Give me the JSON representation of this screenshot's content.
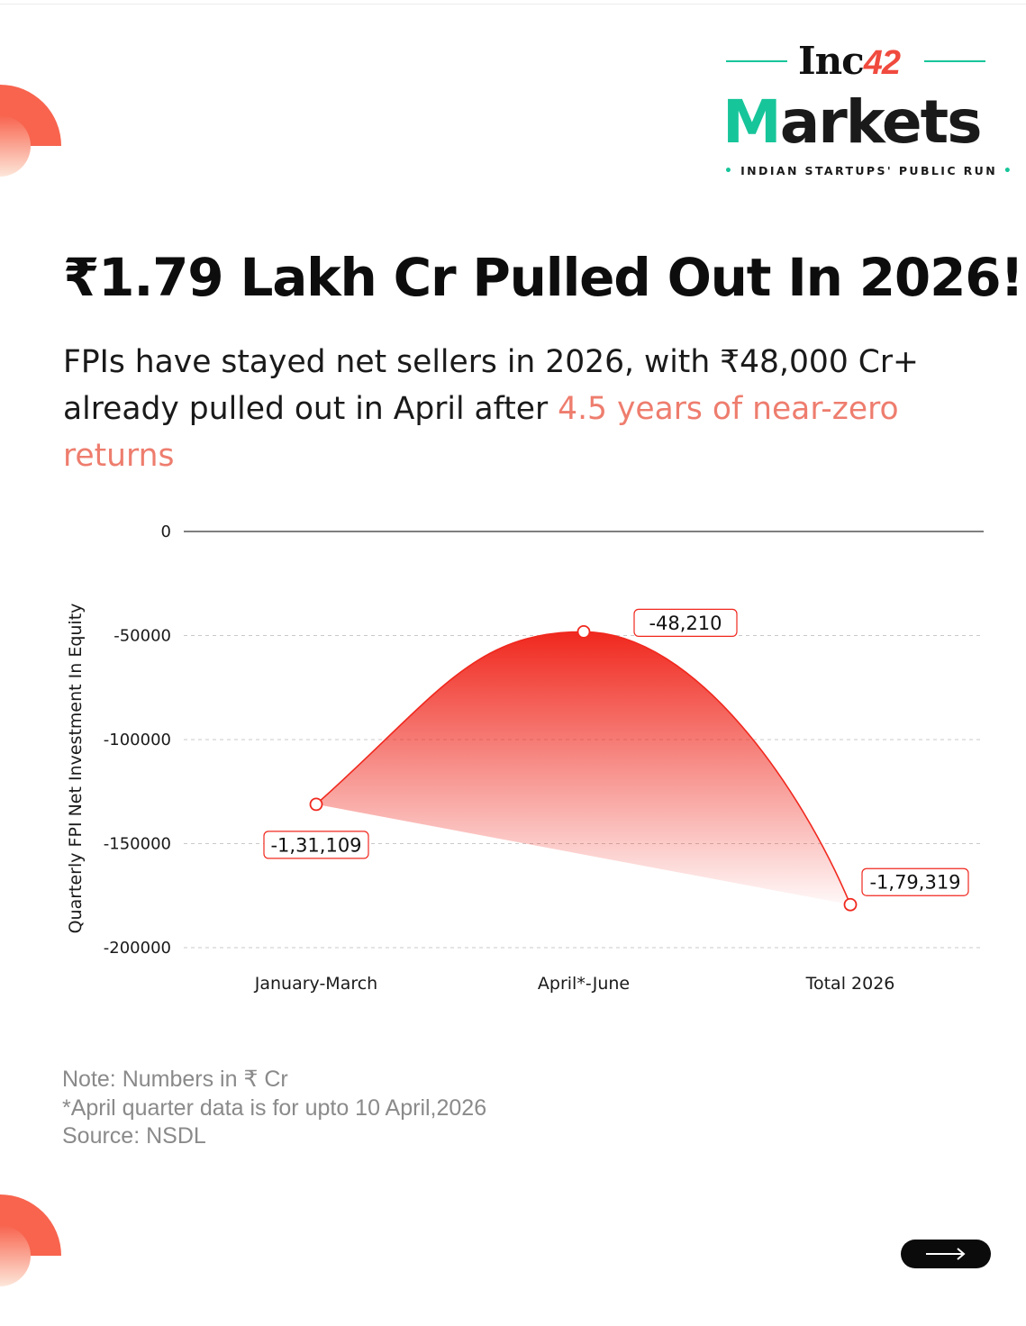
{
  "brand": {
    "inc": "Inc",
    "inc_number": "42",
    "markets_first": "M",
    "markets_rest": "arkets",
    "tagline": "INDIAN STARTUPS' PUBLIC RUN",
    "accent": "#17c59a"
  },
  "headline": "₹1.79 Lakh Cr Pulled Out In 2026!",
  "subhead": {
    "text": "FPIs have stayed net sellers in 2026, with ₹48,000 Cr+ already pulled out in April after ",
    "highlight": "4.5 years of near-zero returns",
    "highlight_color": "#ee7d6e"
  },
  "chart_data": {
    "type": "area",
    "categories": [
      "January-March",
      "April*-June",
      "Total 2026"
    ],
    "values": [
      -131109,
      -48210,
      -179319
    ],
    "data_labels": [
      "-1,31,109",
      "-48,210",
      "-1,79,319"
    ],
    "ylabel": "Quarterly FPI Net Investment In Equity",
    "ylim": [
      -200000,
      0
    ],
    "yticks": [
      0,
      -50000,
      -100000,
      -150000,
      -200000
    ],
    "ytick_labels": [
      "0",
      "-50000",
      "-100000",
      "-150000",
      "-200000"
    ],
    "grid": true,
    "color": "#f0281e"
  },
  "notes": [
    "Note: Numbers in ₹ Cr",
    "*April quarter data is for upto 10 April,2026",
    "Source: NSDL"
  ],
  "next_button": {
    "icon": "arrow-right-icon"
  }
}
